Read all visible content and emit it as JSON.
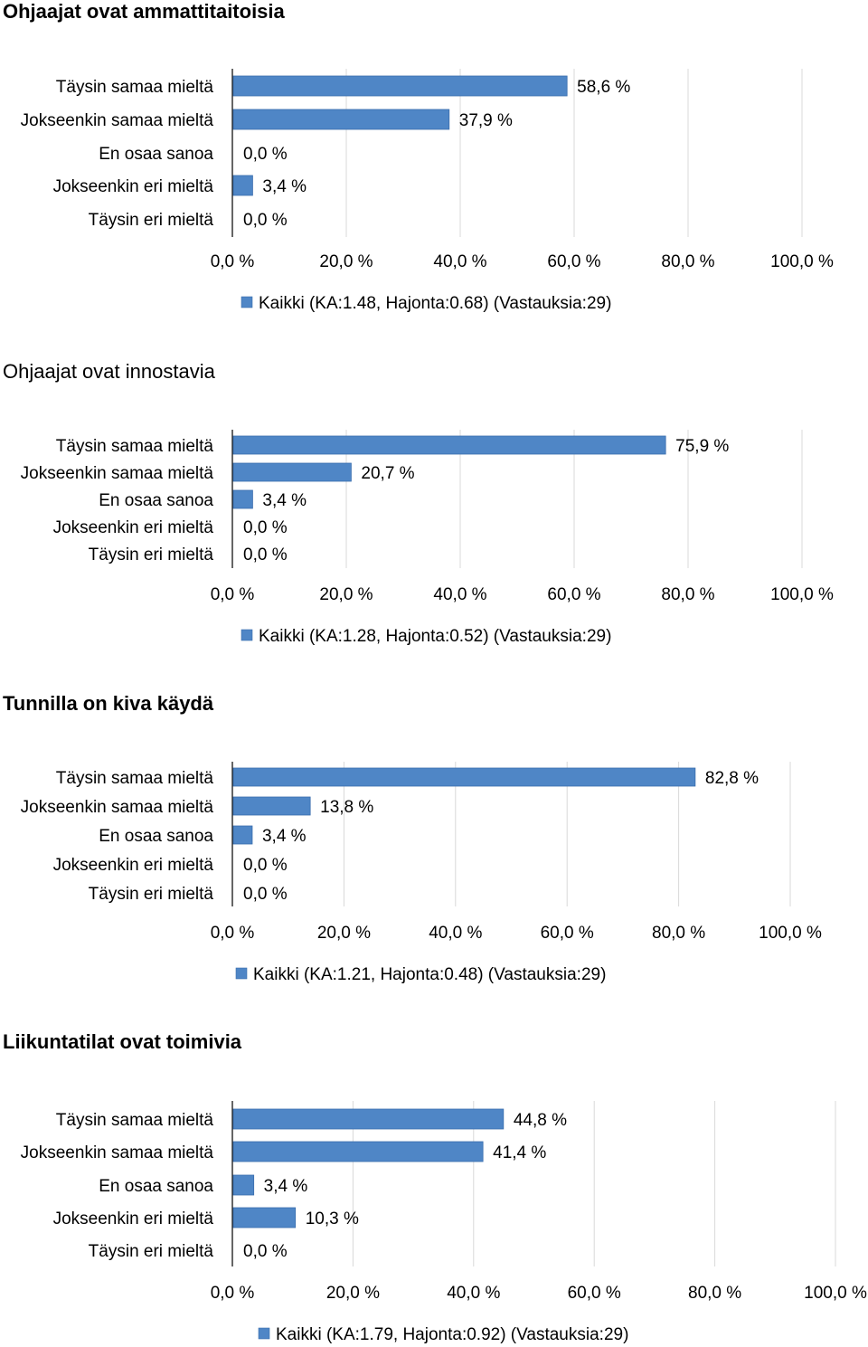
{
  "colors": {
    "bar": "#4F86C6",
    "bar_dark": "#3A6EAE",
    "grid": "#D9D9D9",
    "axis": "#000000"
  },
  "chart_data": [
    {
      "type": "bar",
      "orientation": "horizontal",
      "title": "Ohjaajat ovat ammattitaitoisia",
      "title_bold": true,
      "categories": [
        "Täysin samaa mieltä",
        "Jokseenkin samaa mieltä",
        "En osaa sanoa",
        "Jokseenkin eri mieltä",
        "Täysin eri mieltä"
      ],
      "series": [
        {
          "name": "Kaikki (KA:1.48, Hajonta:0.68) (Vastauksia:29)",
          "values": [
            58.6,
            37.9,
            0.0,
            3.4,
            0.0
          ]
        }
      ],
      "data_labels": [
        "58,6 %",
        "37,9 %",
        "0,0 %",
        "3,4 %",
        "0,0 %"
      ],
      "x_ticks": [
        "0,0 %",
        "20,0 %",
        "40,0 %",
        "60,0 %",
        "80,0 %",
        "100,0 %"
      ],
      "xlim": [
        0,
        100
      ],
      "grid": true,
      "legend": "bottom"
    },
    {
      "type": "bar",
      "orientation": "horizontal",
      "title": "Ohjaajat ovat innostavia",
      "title_bold": false,
      "categories": [
        "Täysin samaa mieltä",
        "Jokseenkin samaa mieltä",
        "En osaa sanoa",
        "Jokseenkin eri mieltä",
        "Täysin eri mieltä"
      ],
      "series": [
        {
          "name": "Kaikki (KA:1.28, Hajonta:0.52) (Vastauksia:29)",
          "values": [
            75.9,
            20.7,
            3.4,
            0.0,
            0.0
          ]
        }
      ],
      "data_labels": [
        "75,9 %",
        "20,7 %",
        "3,4 %",
        "0,0 %",
        "0,0 %"
      ],
      "x_ticks": [
        "0,0 %",
        "20,0 %",
        "40,0 %",
        "60,0 %",
        "80,0 %",
        "100,0 %"
      ],
      "xlim": [
        0,
        100
      ],
      "grid": true,
      "legend": "bottom"
    },
    {
      "type": "bar",
      "orientation": "horizontal",
      "title": "Tunnilla on kiva käydä",
      "title_bold": true,
      "categories": [
        "Täysin samaa mieltä",
        "Jokseenkin samaa mieltä",
        "En osaa sanoa",
        "Jokseenkin eri mieltä",
        "Täysin eri mieltä"
      ],
      "series": [
        {
          "name": "Kaikki (KA:1.21, Hajonta:0.48) (Vastauksia:29)",
          "values": [
            82.8,
            13.8,
            3.4,
            0.0,
            0.0
          ]
        }
      ],
      "data_labels": [
        "82,8 %",
        "13,8 %",
        "3,4 %",
        "0,0 %",
        "0,0 %"
      ],
      "x_ticks": [
        "0,0 %",
        "20,0 %",
        "40,0 %",
        "60,0 %",
        "80,0 %",
        "100,0 %"
      ],
      "xlim": [
        0,
        100
      ],
      "grid": true,
      "legend": "bottom"
    },
    {
      "type": "bar",
      "orientation": "horizontal",
      "title": "Liikuntatilat ovat toimivia",
      "title_bold": true,
      "categories": [
        "Täysin samaa mieltä",
        "Jokseenkin samaa mieltä",
        "En osaa sanoa",
        "Jokseenkin eri mieltä",
        "Täysin eri mieltä"
      ],
      "series": [
        {
          "name": "Kaikki (KA:1.79, Hajonta:0.92) (Vastauksia:29)",
          "values": [
            44.8,
            41.4,
            3.4,
            10.3,
            0.0
          ]
        }
      ],
      "data_labels": [
        "44,8 %",
        "41,4 %",
        "3,4 %",
        "10,3 %",
        "0,0 %"
      ],
      "x_ticks": [
        "0,0 %",
        "20,0 %",
        "40,0 %",
        "60,0 %",
        "80,0 %",
        "100,0 %"
      ],
      "xlim": [
        0,
        100
      ],
      "grid": true,
      "legend": "bottom"
    }
  ]
}
